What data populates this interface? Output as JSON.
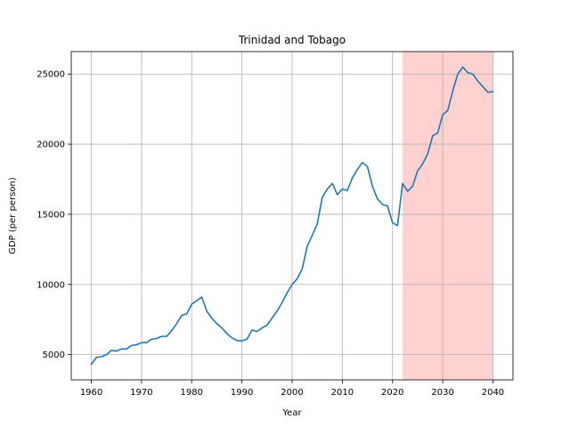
{
  "chart_data": {
    "type": "line",
    "title": "Trinidad and Tobago",
    "xlabel": "Year",
    "ylabel": "GDP (per person)",
    "xlim": [
      1956.0,
      2044.0
    ],
    "ylim": [
      3200,
      26600
    ],
    "xticks": [
      1960,
      1970,
      1980,
      1990,
      2000,
      2010,
      2020,
      2030,
      2040
    ],
    "yticks": [
      5000,
      10000,
      15000,
      20000,
      25000
    ],
    "grid": true,
    "line_color": "#1f77b4",
    "highlight": {
      "x_start": 2022,
      "x_end": 2040,
      "color": "#ff9999",
      "opacity": 0.45
    },
    "series": [
      {
        "name": "GDP per person",
        "x": [
          1960,
          1961,
          1962,
          1963,
          1964,
          1965,
          1966,
          1967,
          1968,
          1969,
          1970,
          1971,
          1972,
          1973,
          1974,
          1975,
          1976,
          1977,
          1978,
          1979,
          1980,
          1981,
          1982,
          1983,
          1984,
          1985,
          1986,
          1987,
          1988,
          1989,
          1990,
          1991,
          1992,
          1993,
          1994,
          1995,
          1996,
          1997,
          1998,
          1999,
          2000,
          2001,
          2002,
          2003,
          2004,
          2005,
          2006,
          2007,
          2008,
          2009,
          2010,
          2011,
          2012,
          2013,
          2014,
          2015,
          2016,
          2017,
          2018,
          2019,
          2020,
          2021,
          2022,
          2023,
          2024,
          2025,
          2026,
          2027,
          2028,
          2029,
          2030,
          2031,
          2032,
          2033,
          2034,
          2035,
          2036,
          2037,
          2038,
          2039,
          2040
        ],
        "values": [
          4300,
          4800,
          4850,
          5000,
          5300,
          5250,
          5400,
          5400,
          5650,
          5700,
          5850,
          5850,
          6100,
          6150,
          6300,
          6300,
          6700,
          7200,
          7800,
          7900,
          8600,
          8850,
          9100,
          8100,
          7600,
          7200,
          6900,
          6500,
          6200,
          6000,
          5980,
          6100,
          6750,
          6650,
          6900,
          7100,
          7600,
          8100,
          8700,
          9400,
          10000,
          10400,
          11100,
          12700,
          13500,
          14300,
          16200,
          16800,
          17200,
          16400,
          16800,
          16700,
          17600,
          18200,
          18700,
          18400,
          17000,
          16100,
          15700,
          15600,
          14400,
          14200,
          17200,
          16650,
          17000,
          18100,
          18600,
          19300,
          20600,
          20800,
          22100,
          22400,
          23800,
          25000,
          25500,
          25100,
          25000,
          24500,
          24100,
          23700,
          23750
        ]
      }
    ]
  }
}
